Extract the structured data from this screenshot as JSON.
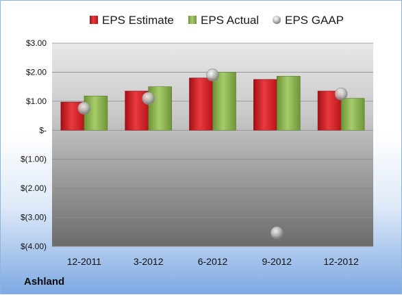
{
  "company": "Ashland",
  "colors": {
    "estimate": "#d8232a",
    "actual": "#8db552",
    "gaap": "#b8b8b8"
  },
  "chart_data": {
    "type": "bar",
    "categories": [
      "12-2011",
      "3-2012",
      "6-2012",
      "9-2012",
      "12-2012"
    ],
    "series": [
      {
        "name": "EPS Estimate",
        "kind": "bar",
        "values": [
          0.97,
          1.35,
          1.8,
          1.75,
          1.35
        ]
      },
      {
        "name": "EPS Actual",
        "kind": "bar",
        "values": [
          1.18,
          1.5,
          2.0,
          1.86,
          1.1
        ]
      },
      {
        "name": "EPS GAAP",
        "kind": "scatter",
        "values": [
          0.76,
          1.1,
          1.9,
          -3.53,
          1.25
        ]
      }
    ],
    "ylim": [
      -4,
      3
    ],
    "yticks": [
      3,
      2,
      1,
      0,
      -1,
      -2,
      -3,
      -4
    ],
    "ytick_labels": [
      "$3.00",
      "$2.00",
      "$1.00",
      "$-",
      "$(1.00)",
      "$(2.00)",
      "$(3.00)",
      "$(4.00)"
    ],
    "grid": true,
    "legend": "top"
  }
}
